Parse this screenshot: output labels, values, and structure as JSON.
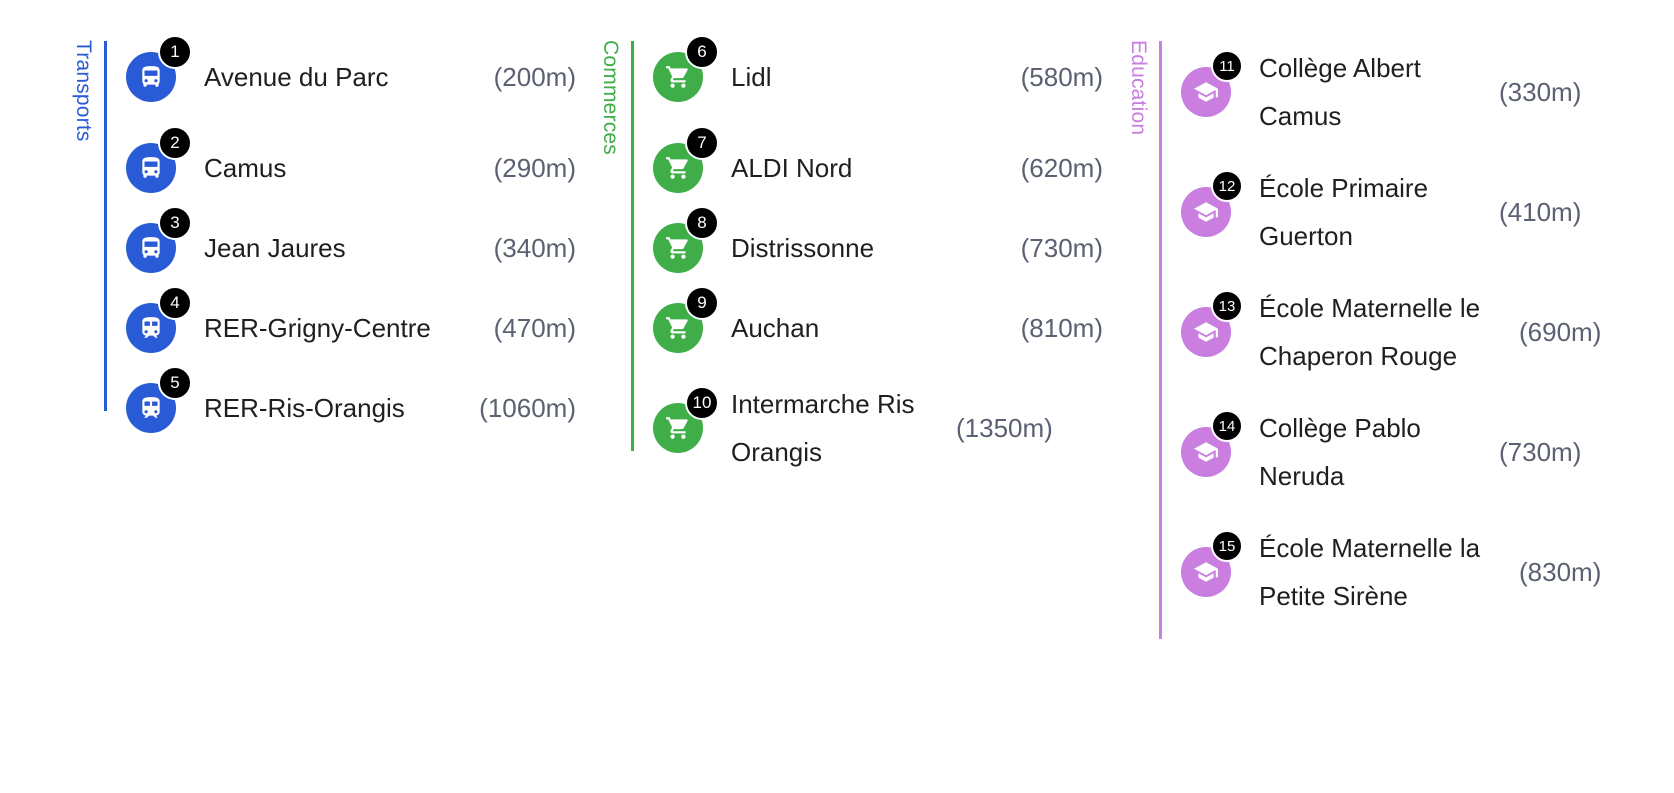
{
  "colors": {
    "transports": "#2a5bd7",
    "commerces": "#3fae49",
    "education": "#c97ee0"
  },
  "categories": {
    "transports": {
      "label": "Transports",
      "icon": "bus-icon",
      "items": [
        {
          "n": "1",
          "name": "Avenue du Parc",
          "dist": "(200m)",
          "icon": "bus-icon"
        },
        {
          "n": "2",
          "name": "Camus",
          "dist": "(290m)",
          "icon": "bus-icon"
        },
        {
          "n": "3",
          "name": "Jean Jaures",
          "dist": "(340m)",
          "icon": "bus-icon"
        },
        {
          "n": "4",
          "name": "RER-Grigny-Centre",
          "dist": "(470m)",
          "icon": "train-icon"
        },
        {
          "n": "5",
          "name": "RER-Ris-Orangis",
          "dist": "(1060m)",
          "icon": "train-icon"
        }
      ]
    },
    "commerces": {
      "label": "Commerces",
      "icon": "cart-icon",
      "items": [
        {
          "n": "6",
          "name": "Lidl",
          "dist": "(580m)"
        },
        {
          "n": "7",
          "name": "ALDI Nord",
          "dist": "(620m)"
        },
        {
          "n": "8",
          "name": "Distrissonne",
          "dist": "(730m)"
        },
        {
          "n": "9",
          "name": "Auchan",
          "dist": "(810m)"
        },
        {
          "n": "10",
          "name": "Intermarche Ris Orangis",
          "dist": "(1350m)"
        }
      ]
    },
    "education": {
      "label": "Education",
      "icon": "graduation-cap-icon",
      "items": [
        {
          "n": "11",
          "name": "Collège Albert Camus",
          "dist": "(330m)"
        },
        {
          "n": "12",
          "name": "École Primaire Guerton",
          "dist": "(410m)"
        },
        {
          "n": "13",
          "name": "École Maternelle le Chaperon Rouge",
          "dist": "(690m)"
        },
        {
          "n": "14",
          "name": "Collège Pablo Neruda",
          "dist": "(730m)"
        },
        {
          "n": "15",
          "name": "École Maternelle la Petite Sirène",
          "dist": "(830m)"
        }
      ]
    }
  }
}
